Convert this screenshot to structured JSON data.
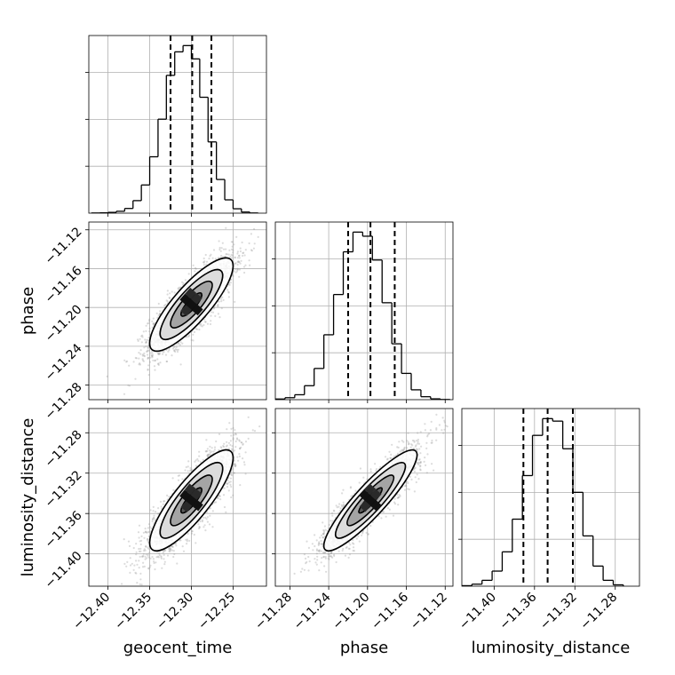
{
  "chart_data": {
    "type": "corner",
    "parameters": [
      "geocent_time",
      "phase",
      "luminosity_distance"
    ],
    "axes": {
      "geocent_time": {
        "label": "geocent_time",
        "range": [
          -12.423,
          -12.21
        ],
        "ticks": [
          -12.4,
          -12.35,
          -12.3,
          -12.25
        ],
        "tick_labels": [
          "−12.40",
          "−12.35",
          "−12.30",
          "−12.25"
        ]
      },
      "phase": {
        "label": "phase",
        "range": [
          -11.295,
          -11.112
        ],
        "ticks": [
          -11.28,
          -11.24,
          -11.2,
          -11.16,
          -11.12
        ],
        "tick_labels": [
          "−11.28",
          "−11.24",
          "−11.20",
          "−11.16",
          "−11.12"
        ]
      },
      "luminosity_distance": {
        "label": "luminosity_distance",
        "range": [
          -11.432,
          -11.256
        ],
        "ticks": [
          -11.4,
          -11.36,
          -11.32,
          -11.28
        ],
        "tick_labels": [
          "−11.40",
          "−11.36",
          "−11.32",
          "−11.28"
        ]
      }
    },
    "marginals": [
      {
        "param": "geocent_time",
        "bin_edges": [
          -12.42,
          -12.41,
          -12.4,
          -12.39,
          -12.38,
          -12.37,
          -12.36,
          -12.35,
          -12.34,
          -12.33,
          -12.32,
          -12.31,
          -12.3,
          -12.29,
          -12.28,
          -12.27,
          -12.26,
          -12.25,
          -12.24,
          -12.23,
          -12.22
        ],
        "counts": [
          1,
          2,
          5,
          12,
          30,
          80,
          180,
          360,
          600,
          880,
          1030,
          1070,
          985,
          740,
          455,
          215,
          85,
          28,
          7,
          1
        ],
        "quantiles": [
          -12.325,
          -12.299,
          -12.276
        ]
      },
      {
        "param": "phase",
        "bin_edges": [
          -11.295,
          -11.285,
          -11.275,
          -11.265,
          -11.255,
          -11.245,
          -11.235,
          -11.225,
          -11.215,
          -11.205,
          -11.195,
          -11.185,
          -11.175,
          -11.165,
          -11.155,
          -11.145,
          -11.135,
          -11.125,
          -11.115
        ],
        "counts": [
          4,
          12,
          30,
          85,
          190,
          395,
          640,
          900,
          1020,
          995,
          850,
          590,
          340,
          160,
          60,
          18,
          5,
          1
        ],
        "quantiles": [
          -11.22,
          -11.197,
          -11.172
        ]
      },
      {
        "param": "luminosity_distance",
        "bin_edges": [
          -11.432,
          -11.422,
          -11.412,
          -11.402,
          -11.392,
          -11.382,
          -11.372,
          -11.362,
          -11.352,
          -11.342,
          -11.332,
          -11.322,
          -11.312,
          -11.302,
          -11.292,
          -11.282,
          -11.272
        ],
        "counts": [
          3,
          12,
          35,
          90,
          205,
          400,
          660,
          900,
          1000,
          985,
          820,
          560,
          300,
          120,
          35,
          8
        ],
        "quantiles": [
          -11.371,
          -11.347,
          -11.322
        ]
      }
    ],
    "pairs": [
      {
        "x": "geocent_time",
        "y": "phase",
        "mean": [
          -12.3,
          -11.197
        ],
        "std": [
          0.025,
          0.024
        ],
        "corr": 0.83
      },
      {
        "x": "geocent_time",
        "y": "luminosity_distance",
        "mean": [
          -12.3,
          -11.347
        ],
        "std": [
          0.025,
          0.025
        ],
        "corr": 0.84
      },
      {
        "x": "phase",
        "y": "luminosity_distance",
        "mean": [
          -11.197,
          -11.347
        ],
        "std": [
          0.024,
          0.025
        ],
        "corr": 0.9
      }
    ],
    "contour_levels_sigma": [
      0.5,
      1.0,
      1.5,
      2.0
    ],
    "grid": true,
    "colors": {
      "hist": "#000000",
      "scatter": "#9a9a9a",
      "grid": "#b0b0b0"
    }
  }
}
